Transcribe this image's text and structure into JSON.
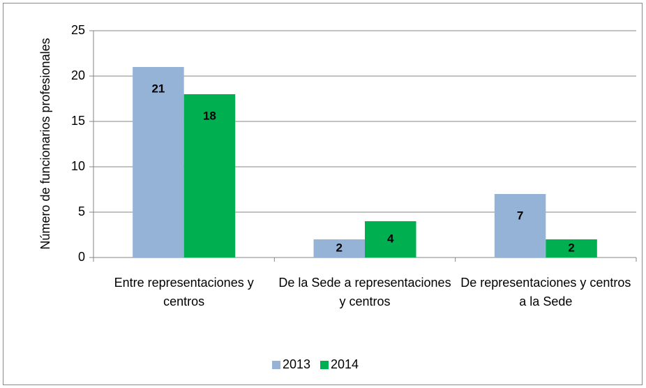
{
  "chart_data": {
    "type": "bar",
    "categories": [
      "Entre representaciones y centros",
      "De la Sede a representaciones y centros",
      "De representaciones y centros a la Sede"
    ],
    "series": [
      {
        "name": "2013",
        "color": "#95b3d7",
        "values": [
          21,
          2,
          7
        ]
      },
      {
        "name": "2014",
        "color": "#00b050",
        "values": [
          18,
          4,
          2
        ]
      }
    ],
    "ylabel": "Número de funcionarios profesionales",
    "ylim": [
      0,
      25
    ],
    "yticks": [
      0,
      5,
      10,
      15,
      20,
      25
    ],
    "grid": true,
    "legend": "bottom"
  }
}
